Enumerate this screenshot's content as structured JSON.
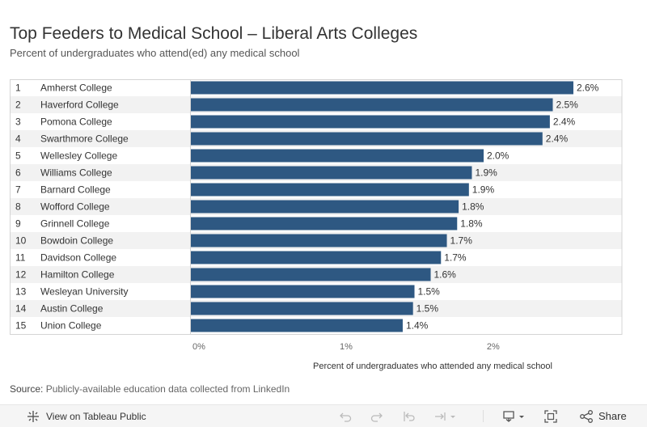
{
  "header": {
    "title": "Top Feeders to Medical School – Liberal Arts Colleges",
    "subtitle": "Percent of undergraduates who attend(ed) any medical school"
  },
  "chart_data": {
    "type": "bar",
    "orientation": "horizontal",
    "ranks": [
      "1",
      "2",
      "3",
      "4",
      "5",
      "6",
      "7",
      "8",
      "9",
      "10",
      "11",
      "12",
      "13",
      "14",
      "15"
    ],
    "categories": [
      "Amherst College",
      "Haverford College",
      "Pomona College",
      "Swarthmore College",
      "Wellesley College",
      "Williams College",
      "Barnard College",
      "Wofford College",
      "Grinnell College",
      "Bowdoin College",
      "Davidson College",
      "Hamilton College",
      "Wesleyan University",
      "Austin College",
      "Union College"
    ],
    "values": [
      2.6,
      2.46,
      2.44,
      2.39,
      1.99,
      1.91,
      1.89,
      1.82,
      1.81,
      1.74,
      1.7,
      1.63,
      1.52,
      1.51,
      1.44
    ],
    "data_labels": [
      "2.6%",
      "2.5%",
      "2.4%",
      "2.4%",
      "2.0%",
      "1.9%",
      "1.9%",
      "1.8%",
      "1.8%",
      "1.7%",
      "1.7%",
      "1.6%",
      "1.5%",
      "1.5%",
      "1.4%"
    ],
    "xlim": [
      0,
      2.93
    ],
    "xticks": [
      0,
      1,
      2
    ],
    "xtick_labels": [
      "0%",
      "1%",
      "2%"
    ],
    "xlabel": "Percent of undergraduates who attended any medical school",
    "bar_color": "#2e5882",
    "row_band_color": "#f2f2f2",
    "grid": false
  },
  "footer": {
    "source_label": "Source:",
    "source_text": "Publicly-available education data collected from LinkedIn"
  },
  "toolbar": {
    "view_label": "View on Tableau Public",
    "share_label": "Share"
  }
}
